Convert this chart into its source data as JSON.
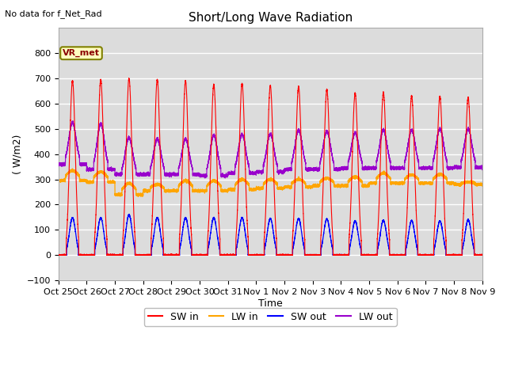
{
  "title": "Short/Long Wave Radiation",
  "xlabel": "Time",
  "ylabel": "( W/m2)",
  "ylim": [
    -100,
    900
  ],
  "yticks": [
    -100,
    0,
    100,
    200,
    300,
    400,
    500,
    600,
    700,
    800
  ],
  "note": "No data for f_Net_Rad",
  "box_label": "VR_met",
  "legend_entries": [
    "SW in",
    "LW in",
    "SW out",
    "LW out"
  ],
  "legend_colors": [
    "#ff0000",
    "#ffa500",
    "#0000ff",
    "#9900cc"
  ],
  "plot_bg_color": "#dcdcdc",
  "fig_bg_color": "#ffffff",
  "num_days": 15,
  "xtick_labels": [
    "Oct 25",
    "Oct 26",
    "Oct 27",
    "Oct 28",
    "Oct 29",
    "Oct 30",
    "Oct 31",
    "Nov 1",
    "Nov 2",
    "Nov 3",
    "Nov 4",
    "Nov 5",
    "Nov 6",
    "Nov 7",
    "Nov 8",
    "Nov 9"
  ],
  "sw_in_peaks": [
    690,
    695,
    700,
    695,
    690,
    675,
    680,
    672,
    668,
    656,
    642,
    643,
    630,
    628,
    625
  ],
  "sw_out_peaks": [
    148,
    148,
    160,
    148,
    148,
    148,
    148,
    145,
    145,
    143,
    135,
    138,
    137,
    135,
    140
  ],
  "lw_in_day_peaks": [
    335,
    330,
    285,
    280,
    295,
    295,
    300,
    300,
    300,
    305,
    310,
    325,
    318,
    320,
    290
  ],
  "lw_in_night_vals": [
    295,
    290,
    240,
    255,
    255,
    255,
    260,
    265,
    270,
    275,
    275,
    285,
    285,
    285,
    280
  ],
  "lw_out_day_peaks": [
    525,
    520,
    465,
    460,
    460,
    475,
    478,
    480,
    495,
    490,
    485,
    495,
    495,
    500,
    500
  ],
  "lw_out_night_vals": [
    360,
    340,
    320,
    320,
    320,
    315,
    325,
    330,
    340,
    340,
    345,
    345,
    345,
    345,
    348
  ]
}
